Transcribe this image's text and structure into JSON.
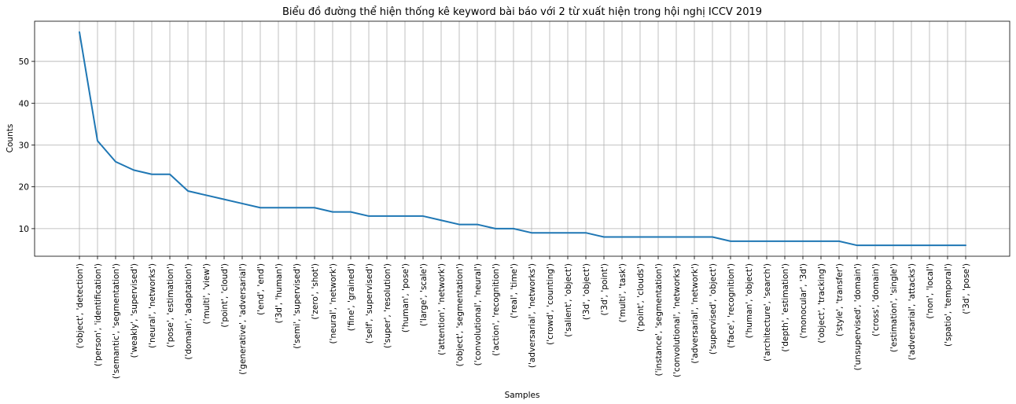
{
  "chart_data": {
    "type": "line",
    "title": "Biểu đồ đường thể hiện thống kê keyword bài báo với 2 từ xuất hiện trong hội nghị ICCV 2019",
    "xlabel": "Samples",
    "ylabel": "Counts",
    "ylim": [
      3.4,
      59.6
    ],
    "yticks": [
      10,
      20,
      30,
      40,
      50
    ],
    "grid": true,
    "line_color": "#1f77b4",
    "categories": [
      "('object', 'detection')",
      "('person', 'identification')",
      "('semantic', 'segmentation')",
      "('weakly', 'supervised')",
      "('neural', 'networks')",
      "('pose', 'estimation')",
      "('domain', 'adaptation')",
      "('multi', 'view')",
      "('point', 'cloud')",
      "('generative', 'adversarial')",
      "('end', 'end')",
      "('3d', 'human')",
      "('semi', 'supervised')",
      "('zero', 'shot')",
      "('neural', 'network')",
      "('fine', 'grained')",
      "('self', 'supervised')",
      "('super', 'resolution')",
      "('human', 'pose')",
      "('large', 'scale')",
      "('attention', 'network')",
      "('object', 'segmentation')",
      "('convolutional', 'neural')",
      "('action', 'recognition')",
      "('real', 'time')",
      "('adversarial', 'networks')",
      "('crowd', 'counting')",
      "('salient', 'object')",
      "('3d', 'object')",
      "('3d', 'point')",
      "('multi', 'task')",
      "('point', 'clouds')",
      "('instance', 'segmentation')",
      "('convolutional', 'networks')",
      "('adversarial', 'network')",
      "('supervised', 'object')",
      "('face', 'recognition')",
      "('human', 'object')",
      "('architecture', 'search')",
      "('depth', 'estimation')",
      "('monocular', '3d')",
      "('object', 'tracking')",
      "('style', 'transfer')",
      "('unsupervised', 'domain')",
      "('cross', 'domain')",
      "('estimation', 'single')",
      "('adversarial', 'attacks')",
      "('non', 'local')",
      "('spatio', 'temporal')",
      "('3d', 'pose')"
    ],
    "values": [
      57,
      31,
      26,
      24,
      23,
      23,
      19,
      18,
      17,
      16,
      15,
      15,
      15,
      15,
      14,
      14,
      13,
      13,
      13,
      13,
      12,
      11,
      11,
      10,
      10,
      9,
      9,
      9,
      9,
      8,
      8,
      8,
      8,
      8,
      8,
      8,
      7,
      7,
      7,
      7,
      7,
      7,
      7,
      6,
      6,
      6,
      6,
      6,
      6,
      6
    ]
  }
}
